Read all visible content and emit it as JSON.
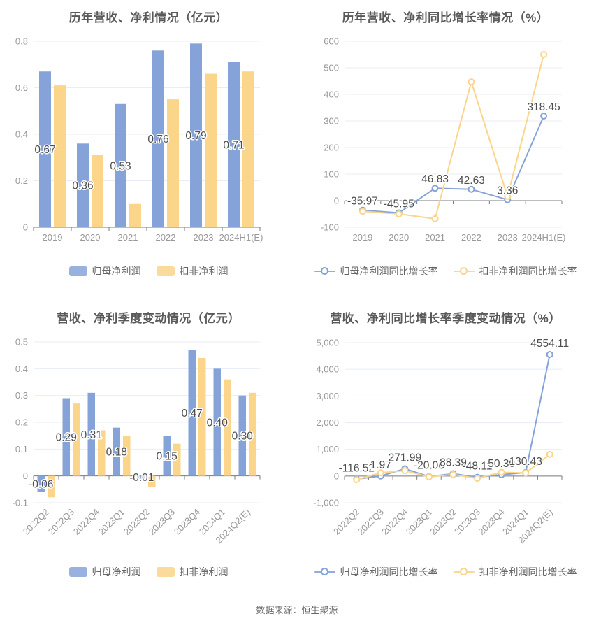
{
  "page": {
    "footer_text": "数据来源：恒生聚源"
  },
  "palette": {
    "blue": "#86A3D9",
    "yellow": "#FAD58A",
    "grid": "#E8EDF6",
    "axis": "#76797E",
    "tick_text": "#999999",
    "title_text": "#595959",
    "label_text": "#4D4D4D",
    "legend_text": "#666666"
  },
  "charts": [
    {
      "id": "annual-amount",
      "type": "bar",
      "title": "历年营收、净利情况（亿元）",
      "categories": [
        "2019",
        "2020",
        "2021",
        "2022",
        "2023",
        "2024H1(E)"
      ],
      "yticks": [
        {
          "value": 0,
          "label": "0"
        },
        {
          "value": 0.2,
          "label": "0.2"
        },
        {
          "value": 0.4,
          "label": "0.4"
        },
        {
          "value": 0.6,
          "label": "0.6"
        },
        {
          "value": 0.8,
          "label": "0.8"
        }
      ],
      "series": [
        {
          "name": "归母净利润",
          "color": "#86A3D9",
          "values": [
            0.67,
            0.36,
            0.53,
            0.76,
            0.79,
            0.71
          ],
          "labels": [
            "0.67",
            "0.36",
            "0.53",
            "0.76",
            "0.79",
            "0.71"
          ]
        },
        {
          "name": "扣非净利润",
          "color": "#FAD58A",
          "values": [
            0.61,
            0.31,
            0.1,
            0.55,
            0.66,
            0.67
          ]
        }
      ]
    },
    {
      "id": "annual-growth",
      "type": "line",
      "title": "历年营收、净利同比增长率情况（%）",
      "categories": [
        "2019",
        "2020",
        "2021",
        "2022",
        "2023",
        "2024H1(E)"
      ],
      "yticks": [
        {
          "value": -100,
          "label": "-100"
        },
        {
          "value": 0,
          "label": "0"
        },
        {
          "value": 100,
          "label": "100"
        },
        {
          "value": 200,
          "label": "200"
        },
        {
          "value": 300,
          "label": "300"
        },
        {
          "value": 400,
          "label": "400"
        },
        {
          "value": 500,
          "label": "500"
        },
        {
          "value": 600,
          "label": "600"
        }
      ],
      "series": [
        {
          "name": "归母净利润同比增长率",
          "color": "#86A3D9",
          "values": [
            -35.97,
            -45.95,
            46.83,
            42.63,
            3.36,
            318.45
          ],
          "labels": [
            "-35.97",
            "-45.95",
            "46.83",
            "42.63",
            "3.36",
            "318.45"
          ]
        },
        {
          "name": "扣非净利润同比增长率",
          "color": "#FAD58A",
          "values": [
            -40,
            -50,
            -68,
            447,
            16,
            550
          ]
        }
      ]
    },
    {
      "id": "quarterly-amount",
      "type": "bar",
      "title": "营收、净利季度变动情况（亿元）",
      "categories": [
        "2022Q2",
        "2022Q3",
        "2022Q4",
        "2023Q1",
        "2023Q2",
        "2023Q3",
        "2023Q4",
        "2024Q1",
        "2024Q2(E)"
      ],
      "yticks": [
        {
          "value": -0.1,
          "label": "-0.1"
        },
        {
          "value": 0,
          "label": "0"
        },
        {
          "value": 0.1,
          "label": "0.1"
        },
        {
          "value": 0.2,
          "label": "0.2"
        },
        {
          "value": 0.3,
          "label": "0.3"
        },
        {
          "value": 0.4,
          "label": "0.4"
        },
        {
          "value": 0.5,
          "label": "0.5"
        }
      ],
      "series": [
        {
          "name": "归母净利润",
          "color": "#86A3D9",
          "values": [
            -0.06,
            0.29,
            0.31,
            0.18,
            -0.01,
            0.15,
            0.47,
            0.4,
            0.3
          ],
          "labels": [
            "-0.06",
            "0.29",
            "0.31",
            "0.18",
            "-0.01",
            "0.15",
            "0.47",
            "0.40",
            "0.30"
          ]
        },
        {
          "name": "扣非净利润",
          "color": "#FAD58A",
          "values": [
            -0.08,
            0.27,
            0.17,
            0.15,
            -0.04,
            0.12,
            0.44,
            0.36,
            0.31
          ]
        }
      ]
    },
    {
      "id": "quarterly-growth",
      "type": "line",
      "title": "营收、净利同比增长率季度变动情况（%）",
      "categories": [
        "2022Q2",
        "2022Q3",
        "2022Q4",
        "2023Q1",
        "2023Q2",
        "2023Q3",
        "2023Q4",
        "2024Q1",
        "2024Q2(E)"
      ],
      "yticks": [
        {
          "value": -1000,
          "label": "-1,000"
        },
        {
          "value": 0,
          "label": "0"
        },
        {
          "value": 1000,
          "label": "1,000"
        },
        {
          "value": 2000,
          "label": "2,000"
        },
        {
          "value": 3000,
          "label": "3,000"
        },
        {
          "value": 4000,
          "label": "4,000"
        },
        {
          "value": 5000,
          "label": "5,000"
        }
      ],
      "series": [
        {
          "name": "归母净利润同比增长率",
          "color": "#86A3D9",
          "values": [
            -116.52,
            1.97,
            271.99,
            -20.06,
            88.39,
            -48.11,
            50.3,
            130.43,
            4554.11
          ],
          "labels": [
            "-116.52",
            "1.97",
            "271.99",
            "-20.06",
            "88.39",
            "-48.11",
            "50.30",
            "130.43",
            "4554.11"
          ]
        },
        {
          "name": "扣非净利润同比增长率",
          "color": "#FAD58A",
          "values": [
            -139,
            123,
            202,
            -30,
            55,
            -85,
            140,
            115,
            810
          ]
        }
      ]
    }
  ],
  "chart_data": [
    {
      "type": "bar",
      "title": "历年营收、净利情况（亿元）",
      "categories": [
        "2019",
        "2020",
        "2021",
        "2022",
        "2023",
        "2024H1(E)"
      ],
      "series": [
        {
          "name": "归母净利润",
          "values": [
            0.67,
            0.36,
            0.53,
            0.76,
            0.79,
            0.71
          ]
        },
        {
          "name": "扣非净利润",
          "values": [
            0.61,
            0.31,
            0.1,
            0.55,
            0.66,
            0.67
          ]
        }
      ],
      "ylim": [
        0,
        0.8
      ],
      "grid": true,
      "legend_position": "bottom"
    },
    {
      "type": "line",
      "title": "历年营收、净利同比增长率情况（%）",
      "categories": [
        "2019",
        "2020",
        "2021",
        "2022",
        "2023",
        "2024H1(E)"
      ],
      "series": [
        {
          "name": "归母净利润同比增长率",
          "values": [
            -35.97,
            -45.95,
            46.83,
            42.63,
            3.36,
            318.45
          ]
        },
        {
          "name": "扣非净利润同比增长率",
          "values": [
            -40,
            -50,
            -68,
            447,
            16,
            550
          ]
        }
      ],
      "ylim": [
        -100,
        600
      ],
      "grid": true,
      "legend_position": "bottom"
    },
    {
      "type": "bar",
      "title": "营收、净利季度变动情况（亿元）",
      "categories": [
        "2022Q2",
        "2022Q3",
        "2022Q4",
        "2023Q1",
        "2023Q2",
        "2023Q3",
        "2023Q4",
        "2024Q1",
        "2024Q2(E)"
      ],
      "series": [
        {
          "name": "归母净利润",
          "values": [
            -0.06,
            0.29,
            0.31,
            0.18,
            -0.01,
            0.15,
            0.47,
            0.4,
            0.3
          ]
        },
        {
          "name": "扣非净利润",
          "values": [
            -0.08,
            0.27,
            0.17,
            0.15,
            -0.04,
            0.12,
            0.44,
            0.36,
            0.31
          ]
        }
      ],
      "ylim": [
        -0.1,
        0.5
      ],
      "grid": true,
      "legend_position": "bottom"
    },
    {
      "type": "line",
      "title": "营收、净利同比增长率季度变动情况（%）",
      "categories": [
        "2022Q2",
        "2022Q3",
        "2022Q4",
        "2023Q1",
        "2023Q2",
        "2023Q3",
        "2023Q4",
        "2024Q1",
        "2024Q2(E)"
      ],
      "series": [
        {
          "name": "归母净利润同比增长率",
          "values": [
            -116.52,
            1.97,
            271.99,
            -20.06,
            88.39,
            -48.11,
            50.3,
            130.43,
            4554.11
          ]
        },
        {
          "name": "扣非净利润同比增长率",
          "values": [
            -139,
            123,
            202,
            -30,
            55,
            -85,
            140,
            115,
            810
          ]
        }
      ],
      "ylim": [
        -1000,
        5000
      ],
      "grid": true,
      "legend_position": "bottom"
    }
  ]
}
